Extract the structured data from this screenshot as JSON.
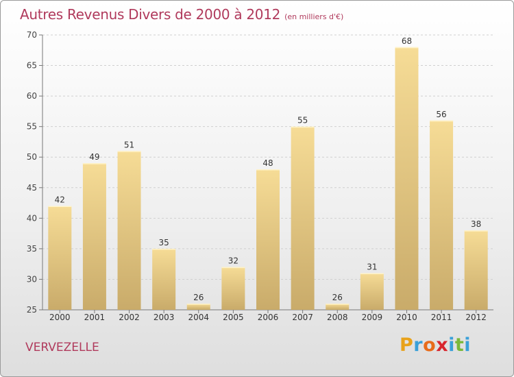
{
  "title": "Autres Revenus Divers de 2000 à 2012",
  "subtitle": "(en milliers d'€)",
  "place": "VERVEZELLE",
  "logo": {
    "letters": [
      "P",
      "r",
      "o",
      "x",
      "i",
      "t",
      "i"
    ],
    "colors": [
      "#e8a21a",
      "#3aa0d8",
      "#e86b1a",
      "#d8262e",
      "#3aa0d8",
      "#7ab83a",
      "#3aa0d8"
    ]
  },
  "colors": {
    "bar_light": "#f6dc96",
    "bar_dark": "#c9ab6a",
    "title": "#b03a5c",
    "grid": "#cfcfcf"
  },
  "chart_data": {
    "type": "bar",
    "categories": [
      "2000",
      "2001",
      "2002",
      "2003",
      "2004",
      "2005",
      "2006",
      "2007",
      "2008",
      "2009",
      "2010",
      "2011",
      "2012"
    ],
    "values": [
      42,
      49,
      51,
      35,
      26,
      32,
      48,
      55,
      26,
      31,
      68,
      56,
      38
    ],
    "ylim": [
      25,
      70
    ],
    "yticks": [
      25,
      30,
      35,
      40,
      45,
      50,
      55,
      60,
      65,
      70
    ],
    "grid": true,
    "legend": "none"
  }
}
